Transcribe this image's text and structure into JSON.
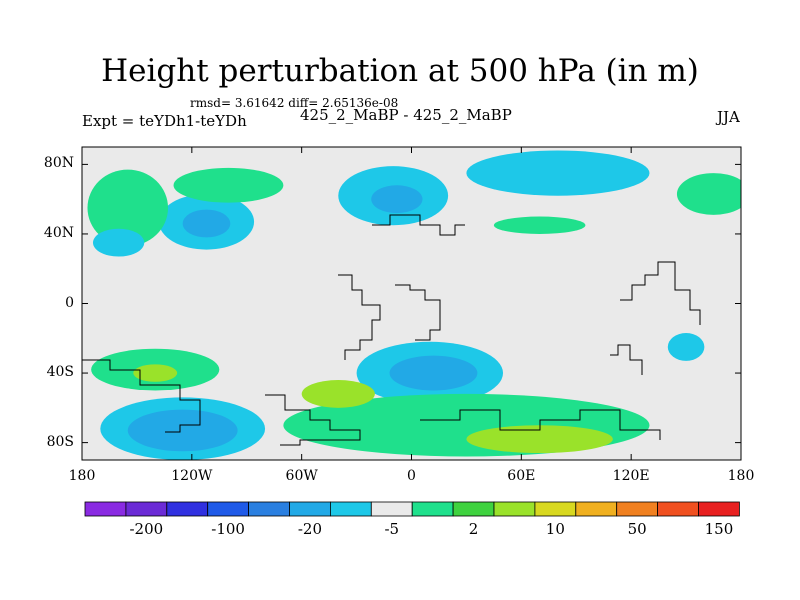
{
  "chart_data": {
    "type": "heatmap",
    "title": "Height perturbation at 500 hPa (in m)",
    "stats_text": "rmsd= 3.61642 diff= 2.65136e-08",
    "left_label": "Expt = teYDh1-teYDh",
    "center_label": "425_2_MaBP - 425_2_MaBP",
    "right_label": "JJA",
    "xlim": [
      -180,
      180
    ],
    "ylim": [
      -90,
      90
    ],
    "x_ticks": [
      {
        "value": -180,
        "label": "180"
      },
      {
        "value": -120,
        "label": "120W"
      },
      {
        "value": -60,
        "label": "60W"
      },
      {
        "value": 0,
        "label": "0"
      },
      {
        "value": 60,
        "label": "60E"
      },
      {
        "value": 120,
        "label": "120E"
      },
      {
        "value": 180,
        "label": "180"
      }
    ],
    "y_ticks": [
      {
        "value": 80,
        "label": "80N"
      },
      {
        "value": 40,
        "label": "40N"
      },
      {
        "value": 0,
        "label": "0"
      },
      {
        "value": -40,
        "label": "40S"
      },
      {
        "value": -80,
        "label": "80S"
      }
    ],
    "colorbar": {
      "colors": [
        "#8a2be2",
        "#6b2bd6",
        "#3030e0",
        "#1f5ae8",
        "#2a7fe0",
        "#22a9e6",
        "#1ec8e8",
        "#eaeaea",
        "#1fe08c",
        "#3fd23f",
        "#9ae22a",
        "#d8d820",
        "#f0b020",
        "#f08020",
        "#f05020",
        "#e82020"
      ],
      "labels": [
        {
          "boundary": 1,
          "label": "-200"
        },
        {
          "boundary": 3,
          "label": "-100"
        },
        {
          "boundary": 5,
          "label": "-20"
        },
        {
          "boundary": 7,
          "label": "-5"
        },
        {
          "boundary": 9,
          "label": "2"
        },
        {
          "boundary": 11,
          "label": "10"
        },
        {
          "boundary": 13,
          "label": "50"
        },
        {
          "boundary": 15,
          "label": "150"
        }
      ]
    },
    "anomaly_regions": [
      {
        "name": "north-atlantic-low",
        "lon": -10,
        "lat": 62,
        "rlon": 30,
        "rlat": 17,
        "level": -5
      },
      {
        "name": "north-atlantic-low-core",
        "lon": -8,
        "lat": 60,
        "rlon": 14,
        "rlat": 8,
        "level": -20
      },
      {
        "name": "north-america-low",
        "lon": -112,
        "lat": 47,
        "rlon": 26,
        "rlat": 16,
        "level": -5
      },
      {
        "name": "north-america-low-core",
        "lon": -112,
        "lat": 46,
        "rlon": 13,
        "rlat": 8,
        "level": -20
      },
      {
        "name": "arctic-high-west",
        "lon": -100,
        "lat": 68,
        "rlon": 30,
        "rlat": 10,
        "level": 2
      },
      {
        "name": "pacific-high-ring",
        "lon": -155,
        "lat": 55,
        "rlon": 22,
        "rlat": 22,
        "level": 2
      },
      {
        "name": "west-pacific-high",
        "lon": -160,
        "lat": 35,
        "rlon": 14,
        "rlat": 8,
        "level": -5
      },
      {
        "name": "siberia-low",
        "lon": 80,
        "lat": 75,
        "rlon": 50,
        "rlat": 13,
        "level": -5
      },
      {
        "name": "east-asia-high",
        "lon": 165,
        "lat": 63,
        "rlon": 20,
        "rlat": 12,
        "level": 2
      },
      {
        "name": "central-asia-high",
        "lon": 70,
        "lat": 45,
        "rlon": 25,
        "rlat": 5,
        "level": 2
      },
      {
        "name": "south-pacific-high",
        "lon": -140,
        "lat": -38,
        "rlon": 35,
        "rlat": 12,
        "level": 2
      },
      {
        "name": "south-pacific-high-core",
        "lon": -140,
        "lat": -40,
        "rlon": 12,
        "rlat": 5,
        "level": 10
      },
      {
        "name": "southern-ocean-low",
        "lon": -125,
        "lat": -72,
        "rlon": 45,
        "rlat": 18,
        "level": -5
      },
      {
        "name": "southern-ocean-low-core",
        "lon": -125,
        "lat": -73,
        "rlon": 30,
        "rlat": 12,
        "level": -20
      },
      {
        "name": "south-atlantic-low",
        "lon": 10,
        "lat": -40,
        "rlon": 40,
        "rlat": 18,
        "level": -5
      },
      {
        "name": "south-atlantic-low-core",
        "lon": 12,
        "lat": -40,
        "rlon": 24,
        "rlat": 10,
        "level": -20
      },
      {
        "name": "antarctic-high",
        "lon": 30,
        "lat": -70,
        "rlon": 100,
        "rlat": 18,
        "level": 2
      },
      {
        "name": "antarctic-high-core-west",
        "lon": -40,
        "lat": -52,
        "rlon": 20,
        "rlat": 8,
        "level": 10
      },
      {
        "name": "antarctic-high-core-east",
        "lon": 70,
        "lat": -78,
        "rlon": 40,
        "rlat": 8,
        "level": 10
      },
      {
        "name": "australia-low",
        "lon": 150,
        "lat": -25,
        "rlon": 10,
        "rlat": 8,
        "level": -5
      }
    ]
  }
}
